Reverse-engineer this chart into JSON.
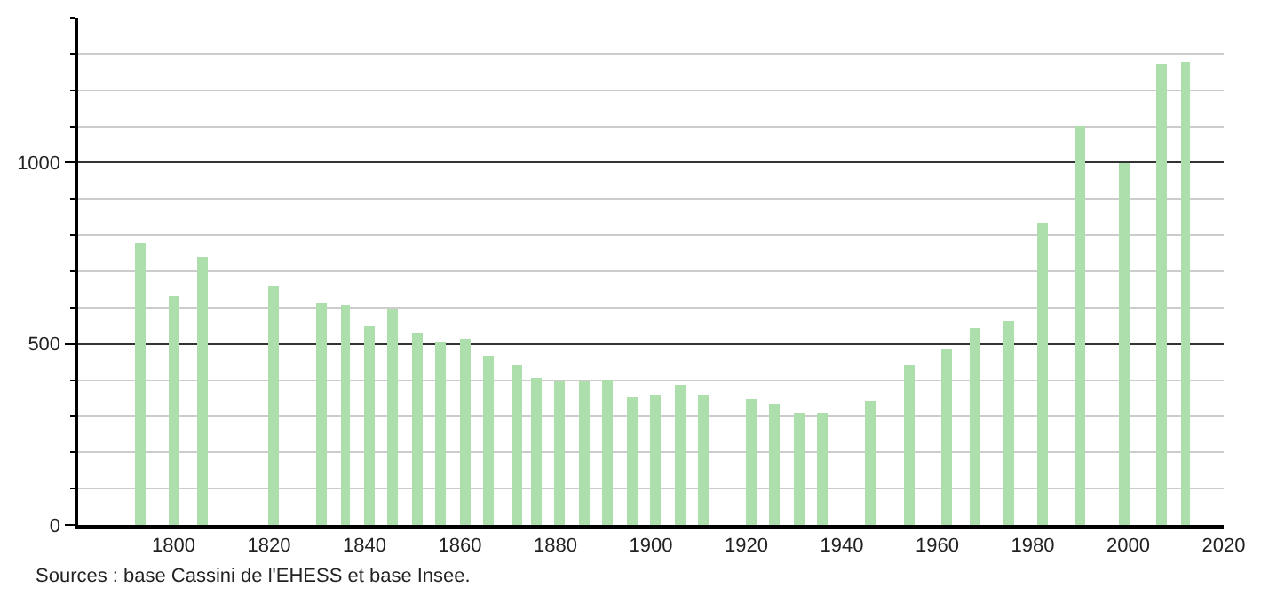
{
  "chart_data": {
    "type": "bar",
    "x": [
      1793,
      1800,
      1806,
      1821,
      1831,
      1836,
      1841,
      1846,
      1851,
      1856,
      1861,
      1866,
      1872,
      1876,
      1881,
      1886,
      1891,
      1896,
      1901,
      1906,
      1911,
      1921,
      1926,
      1931,
      1936,
      1946,
      1954,
      1962,
      1968,
      1975,
      1982,
      1990,
      1999,
      2007,
      2012
    ],
    "values": [
      780,
      630,
      740,
      663,
      611,
      605,
      547,
      598,
      527,
      503,
      513,
      465,
      440,
      406,
      395,
      395,
      402,
      353,
      358,
      387,
      358,
      348,
      334,
      310,
      310,
      344,
      440,
      484,
      542,
      561,
      832,
      1103,
      1000,
      1273,
      1277
    ],
    "color": "#addfad",
    "xlim": [
      1780,
      2020
    ],
    "xticks": [
      1800,
      1820,
      1840,
      1860,
      1880,
      1900,
      1920,
      1940,
      1960,
      1980,
      2000,
      2020
    ],
    "ylim": [
      0,
      1400
    ],
    "yticks": [
      0,
      {
        "value": 100,
        "label": null
      },
      {
        "value": 200,
        "label": null
      },
      {
        "value": 300,
        "label": null
      },
      {
        "value": 400,
        "label": null
      },
      500,
      {
        "value": 600,
        "label": null
      },
      {
        "value": 700,
        "label": null
      },
      {
        "value": 800,
        "label": null
      },
      {
        "value": 900,
        "label": null
      },
      1000,
      {
        "value": 1100,
        "label": null
      },
      {
        "value": 1200,
        "label": null
      },
      {
        "value": 1300,
        "label": null
      },
      {
        "value": 1400,
        "label": null
      }
    ],
    "grid": "y",
    "annotations": [
      "Sources : base Cassini de l'EHESS et base Insee."
    ]
  }
}
